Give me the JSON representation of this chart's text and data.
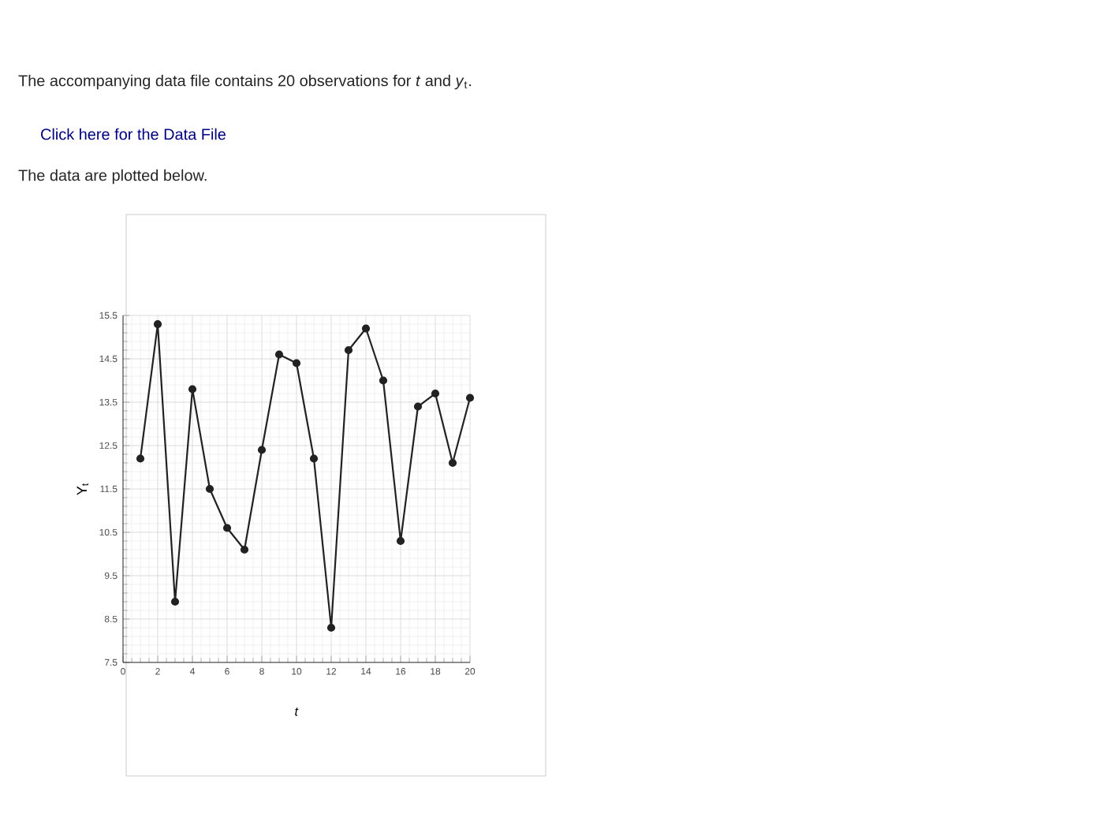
{
  "chart_data": {
    "type": "line",
    "annotations": [
      "The accompanying data file contains 20 observations for *t* and *y*$_{t}$.",
      "Click here for the Data File",
      "The data are plotted below."
    ],
    "xlabel": "*t*",
    "ylabel": "Y$_{t}$",
    "x": [
      1,
      2,
      3,
      4,
      5,
      6,
      7,
      8,
      9,
      10,
      11,
      12,
      13,
      14,
      15,
      16,
      17,
      18,
      19,
      20
    ],
    "series": [
      {
        "color": "#222222",
        "values": [
          12.2,
          15.3,
          8.9,
          13.8,
          11.5,
          10.6,
          10.1,
          12.4,
          14.6,
          14.4,
          12.2,
          8.3,
          14.7,
          15.2,
          14.0,
          10.3,
          13.4,
          13.7,
          12.1,
          13.6
        ]
      }
    ],
    "xlim": [
      0,
      20
    ],
    "xticks": [
      0,
      2,
      4,
      6,
      8,
      10,
      12,
      14,
      16,
      18,
      20
    ],
    "ylim": [
      7.5,
      15.5
    ],
    "yticks": [
      7.5,
      8.5,
      9.5,
      10.5,
      11.5,
      12.5,
      13.5,
      14.5,
      15.5
    ],
    "grid": true,
    "marker": "circle",
    "line_style": "solid"
  }
}
